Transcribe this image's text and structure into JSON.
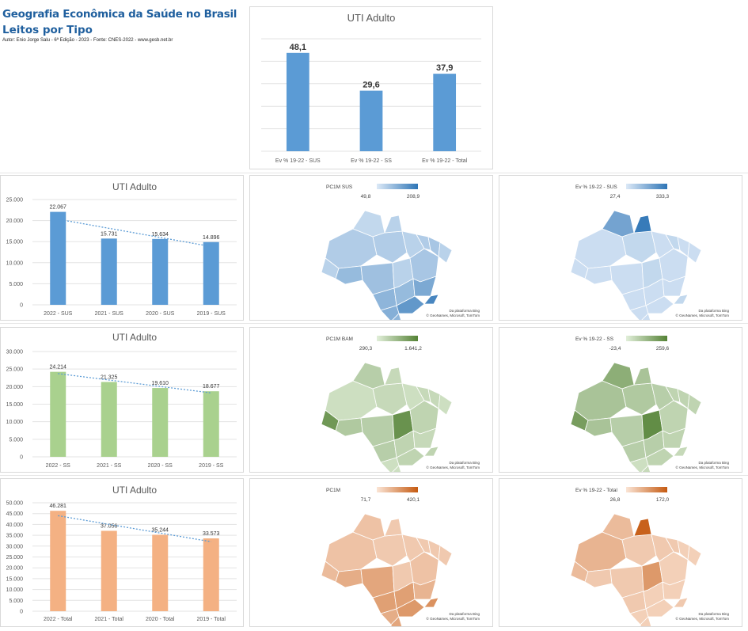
{
  "header": {
    "title_line1": "Geografia Econômica da Saúde no Brasil",
    "title_line2": "Leitos por Tipo",
    "author": "Autor: Enio Jorge Salu - 6ª Edição - 2023 - Fonte: CNES-2022 - www.gesb.net.br"
  },
  "colors": {
    "blue": "#5b9bd5",
    "green": "#a9d18e",
    "orange": "#f4b183",
    "trend": "#5b9bd5",
    "grid": "#e3e3e3",
    "text": "#595959"
  },
  "chart_data": [
    {
      "type": "bar",
      "title": "UTI Adulto",
      "categories": [
        "Ev % 19-22 - SUS",
        "Ev % 19-22 - SS",
        "Ev % 19-22 - Total"
      ],
      "values": [
        48.1,
        29.6,
        37.9
      ],
      "labels": [
        "48,1",
        "29,6",
        "37,9"
      ],
      "ylim": [
        0,
        55
      ],
      "grid": true,
      "color": "blue"
    },
    {
      "type": "bar",
      "title": "UTI Adulto",
      "categories": [
        "2022 - SUS",
        "2021 - SUS",
        "2020 - SUS",
        "2019 - SUS"
      ],
      "values": [
        22067,
        15731,
        15634,
        14896
      ],
      "labels": [
        "22.067",
        "15.731",
        "15.634",
        "14.896"
      ],
      "ylim": [
        0,
        25000
      ],
      "yticks": [
        "0",
        "5.000",
        "10.000",
        "15.000",
        "20.000",
        "25.000"
      ],
      "trendline": true,
      "grid": true,
      "color": "blue"
    },
    {
      "type": "bar",
      "title": "UTI Adulto",
      "categories": [
        "2022 - SS",
        "2021 - SS",
        "2020 - SS",
        "2019 - SS"
      ],
      "values": [
        24214,
        21325,
        19610,
        18677
      ],
      "labels": [
        "24.214",
        "21.325",
        "19.610",
        "18.677"
      ],
      "ylim": [
        0,
        30000
      ],
      "yticks": [
        "0",
        "5.000",
        "10.000",
        "15.000",
        "20.000",
        "25.000",
        "30.000"
      ],
      "trendline": true,
      "grid": true,
      "color": "green"
    },
    {
      "type": "bar",
      "title": "UTI Adulto",
      "categories": [
        "2022 - Total",
        "2021 - Total",
        "2020 - Total",
        "2019 - Total"
      ],
      "values": [
        46281,
        37056,
        35244,
        33573
      ],
      "labels": [
        "46.281",
        "37.056",
        "35.244",
        "33.573"
      ],
      "ylim": [
        0,
        50000
      ],
      "yticks": [
        "0",
        "5.000",
        "10.000",
        "15.000",
        "20.000",
        "25.000",
        "30.000",
        "35.000",
        "40.000",
        "45.000",
        "50.000"
      ],
      "trendline": true,
      "grid": true,
      "color": "orange"
    }
  ],
  "maps": [
    {
      "legend_title": "PC1M SUS",
      "min": "49,8",
      "max": "208,9",
      "color_lo": "#dce9f7",
      "color_hi": "#2e75b6",
      "credit1": "Da plataforma Bing",
      "credit2": "© GeoNames, Microsoft, TomTom"
    },
    {
      "legend_title": "Ev % 19-22 - SUS",
      "min": "27,4",
      "max": "333,3",
      "color_lo": "#dce9f7",
      "color_hi": "#2e75b6",
      "credit1": "Da plataforma Bing",
      "credit2": "© GeoNames, Microsoft, TomTom"
    },
    {
      "legend_title": "PC1M BAM",
      "min": "290,3",
      "max": "1.641,2",
      "color_lo": "#e2efda",
      "color_hi": "#548235",
      "credit1": "Da plataforma Bing",
      "credit2": "© GeoNames, Microsoft, TomTom"
    },
    {
      "legend_title": "Ev % 19-22 - SS",
      "min": "-23,4",
      "max": "259,6",
      "color_lo": "#e2efda",
      "color_hi": "#548235",
      "credit1": "Da plataforma Bing",
      "credit2": "© GeoNames, Microsoft, TomTom"
    },
    {
      "legend_title": "PC1M",
      "min": "71,7",
      "max": "420,1",
      "color_lo": "#fbe5d6",
      "color_hi": "#c55a11",
      "credit1": "Da plataforma Bing",
      "credit2": "© GeoNames, Microsoft, TomTom"
    },
    {
      "legend_title": "Ev % 19-22 - Total",
      "min": "26,8",
      "max": "172,0",
      "color_lo": "#fbe5d6",
      "color_hi": "#c55a11",
      "credit1": "Da plataforma Bing",
      "credit2": "© GeoNames, Microsoft, TomTom"
    }
  ]
}
